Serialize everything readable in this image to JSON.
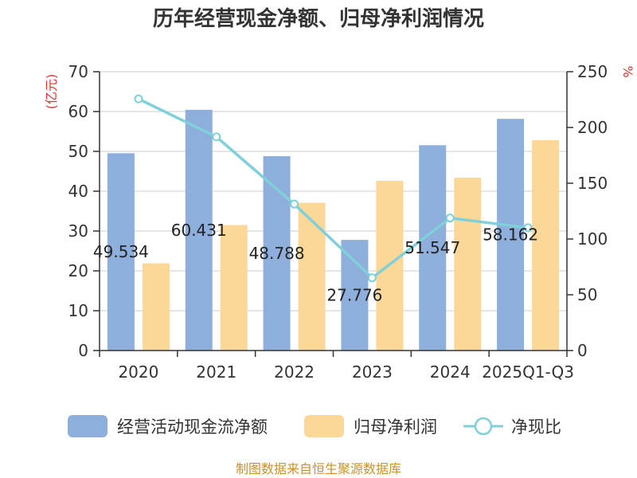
{
  "title": "历年经营现金净额、归母净利润情况",
  "source": "制图数据来自恒生聚源数据库",
  "chart_data": {
    "type": "bar",
    "categories": [
      "2020",
      "2021",
      "2022",
      "2023",
      "2024",
      "2025Q1-Q3"
    ],
    "left_axis": {
      "unit": "(亿元)",
      "min": 0,
      "max": 70,
      "ticks": [
        0,
        10,
        20,
        30,
        40,
        50,
        60,
        70
      ]
    },
    "right_axis": {
      "unit": "%",
      "min": 0,
      "max": 250,
      "ticks": [
        0,
        50,
        100,
        150,
        200,
        250
      ]
    },
    "series": [
      {
        "name": "经营活动现金流净额",
        "type": "bar",
        "axis": "left",
        "color": "#8eaedc",
        "values": [
          49.534,
          60.431,
          48.788,
          27.776,
          51.547,
          58.162
        ],
        "labels": [
          "49.534",
          "60.431",
          "48.788",
          "27.776",
          "51.547",
          "58.162"
        ]
      },
      {
        "name": "归母净利润",
        "type": "bar",
        "axis": "left",
        "color": "#fcd898",
        "values": [
          21.9,
          31.5,
          37.1,
          42.6,
          43.4,
          52.8
        ]
      },
      {
        "name": "净现比",
        "type": "line",
        "axis": "right",
        "color": "#7fd0d8",
        "values": [
          225.6,
          191.6,
          131.3,
          65.2,
          118.8,
          110.1
        ]
      }
    ],
    "grid": true,
    "legend_position": "bottom"
  }
}
